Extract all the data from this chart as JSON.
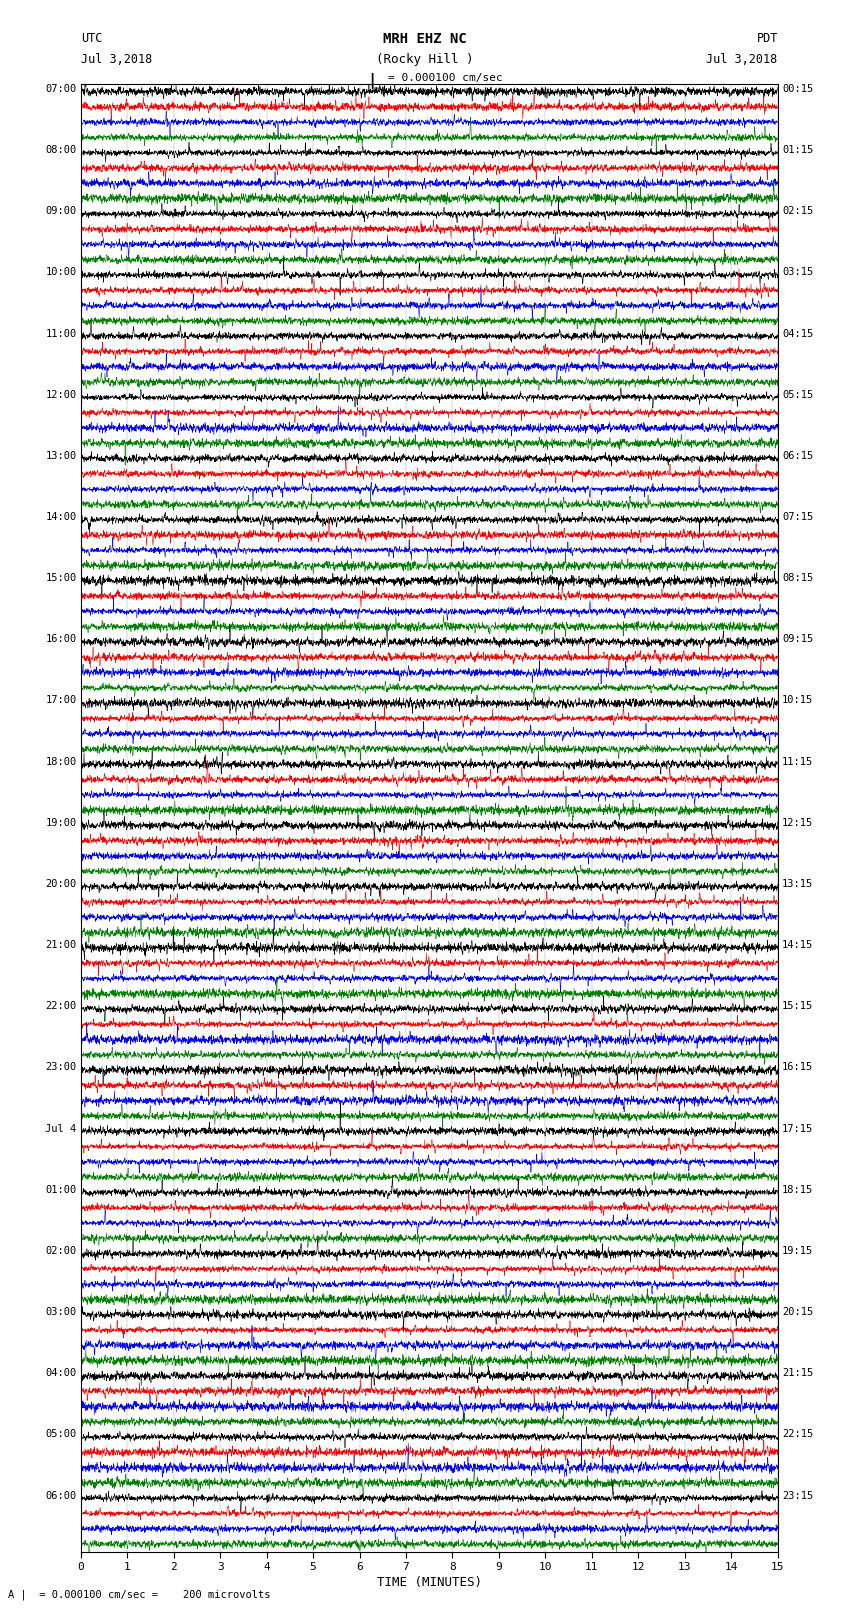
{
  "title_line1": "MRH EHZ NC",
  "title_line2": "(Rocky Hill )",
  "scale_label": "= 0.000100 cm/sec",
  "bottom_label": "= 0.000100 cm/sec =    200 microvolts",
  "xlabel": "TIME (MINUTES)",
  "utc_label": "UTC",
  "utc_date": "Jul 3,2018",
  "pdt_label": "PDT",
  "pdt_date": "Jul 3,2018",
  "left_times": [
    "07:00",
    "08:00",
    "09:00",
    "10:00",
    "11:00",
    "12:00",
    "13:00",
    "14:00",
    "15:00",
    "16:00",
    "17:00",
    "18:00",
    "19:00",
    "20:00",
    "21:00",
    "22:00",
    "23:00",
    "Jul 4",
    "01:00",
    "02:00",
    "03:00",
    "04:00",
    "05:00",
    "06:00"
  ],
  "right_times": [
    "00:15",
    "01:15",
    "02:15",
    "03:15",
    "04:15",
    "05:15",
    "06:15",
    "07:15",
    "08:15",
    "09:15",
    "10:15",
    "11:15",
    "12:15",
    "13:15",
    "14:15",
    "15:15",
    "16:15",
    "17:15",
    "18:15",
    "19:15",
    "20:15",
    "21:15",
    "22:15",
    "23:15"
  ],
  "num_groups": 24,
  "traces_per_group": 4,
  "colors": [
    "black",
    "red",
    "blue",
    "green"
  ],
  "fig_width": 8.5,
  "fig_height": 16.13,
  "dpi": 100,
  "bg_color": "white",
  "time_min": 0,
  "time_max": 15,
  "xticks": [
    0,
    1,
    2,
    3,
    4,
    5,
    6,
    7,
    8,
    9,
    10,
    11,
    12,
    13,
    14,
    15
  ],
  "npts": 3000,
  "amplitude": 0.42,
  "linewidth": 0.4,
  "noise_base": [
    1.0,
    1.2,
    1.1,
    0.8
  ],
  "spike_density": [
    0.015,
    0.025,
    0.02,
    0.012
  ]
}
